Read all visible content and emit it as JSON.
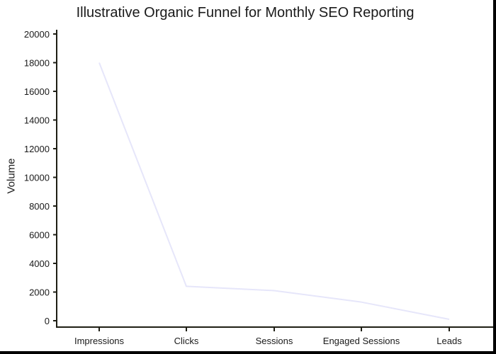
{
  "chart_data": {
    "type": "line",
    "title": "Illustrative Organic Funnel for Monthly SEO Reporting",
    "xlabel": "",
    "ylabel": "Volume",
    "categories": [
      "Impressions",
      "Clicks",
      "Sessions",
      "Engaged Sessions",
      "Leads"
    ],
    "series": [
      {
        "name": "Volume",
        "values": [
          18000,
          2400,
          2100,
          1300,
          100
        ],
        "color": "#e6e6fa"
      }
    ],
    "ylim": [
      0,
      20000
    ],
    "yticks": [
      0,
      2000,
      4000,
      6000,
      8000,
      10000,
      12000,
      14000,
      16000,
      18000,
      20000
    ],
    "grid": false,
    "legend": "none"
  }
}
